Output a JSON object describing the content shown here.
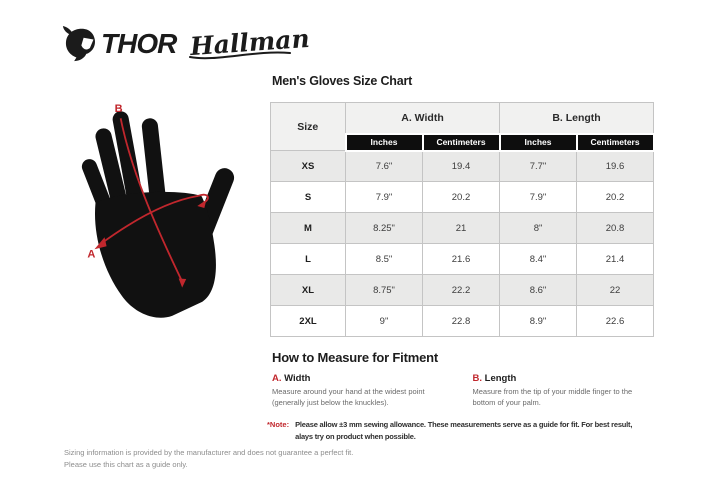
{
  "brand": {
    "thor_label": "THOR",
    "hallman_label": "Hallman"
  },
  "colors": {
    "accent_red": "#c1272d",
    "ink_black": "#191919",
    "table_border": "#c4c4c4",
    "table_header_bg": "#f1f1f0",
    "row_alt_bg": "#e9e9e8",
    "subheader_bg": "#0e0e0e"
  },
  "glove_diagram": {
    "label_a": "A",
    "label_b": "B"
  },
  "size_chart": {
    "title": "Men's Gloves Size Chart",
    "size_header": "Size",
    "groups": [
      {
        "label": "A. Width",
        "sub": [
          "Inches",
          "Centimeters"
        ]
      },
      {
        "label": "B. Length",
        "sub": [
          "Inches",
          "Centimeters"
        ]
      }
    ],
    "rows": [
      {
        "size": "XS",
        "values": [
          "7.6\"",
          "19.4",
          "7.7\"",
          "19.6"
        ]
      },
      {
        "size": "S",
        "values": [
          "7.9\"",
          "20.2",
          "7.9\"",
          "20.2"
        ]
      },
      {
        "size": "M",
        "values": [
          "8.25\"",
          "21",
          "8\"",
          "20.8"
        ]
      },
      {
        "size": "L",
        "values": [
          "8.5\"",
          "21.6",
          "8.4\"",
          "21.4"
        ]
      },
      {
        "size": "XL",
        "values": [
          "8.75\"",
          "22.2",
          "8.6\"",
          "22"
        ]
      },
      {
        "size": "2XL",
        "values": [
          "9\"",
          "22.8",
          "8.9\"",
          "22.6"
        ]
      }
    ]
  },
  "fitment": {
    "title": "How to Measure for Fitment",
    "items": [
      {
        "prefix": "A.",
        "label": "Width",
        "text": "Measure around your hand at the widest point (generally just below the knuckles)."
      },
      {
        "prefix": "B.",
        "label": "Length",
        "text": "Measure from the tip of your middle finger to the bottom of your palm."
      }
    ],
    "note_label": "*Note:",
    "note_text": "Please allow ±3 mm sewing allowance. These measurements serve as a guide for fit. For best result, alays try on product when possible."
  },
  "footer": {
    "line1": "Sizing information is provided by the manufacturer and does not guarantee a perfect fit.",
    "line2": "Please use this chart as a guide only."
  }
}
